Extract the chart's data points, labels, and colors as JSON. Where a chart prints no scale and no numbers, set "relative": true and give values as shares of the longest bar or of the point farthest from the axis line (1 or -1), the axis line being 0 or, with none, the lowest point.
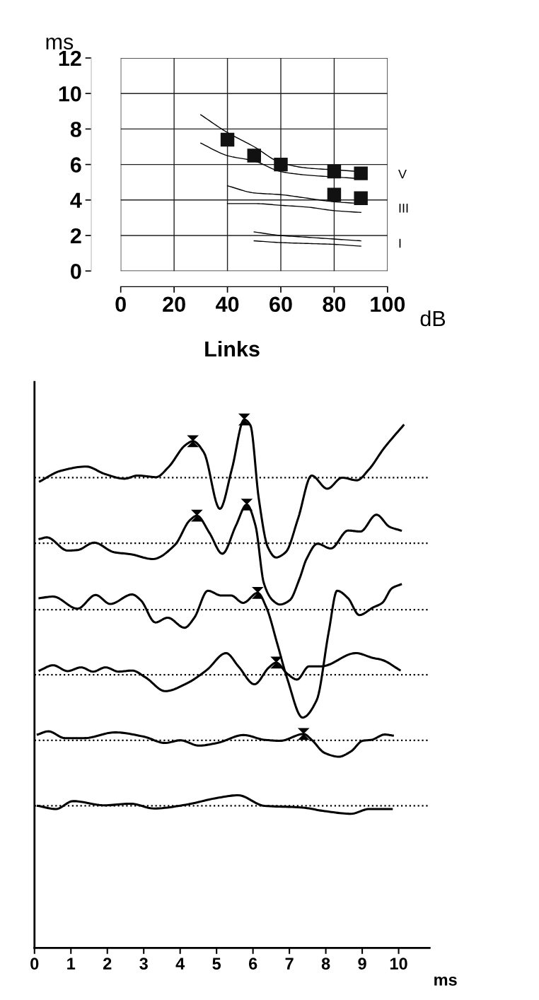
{
  "chart_data": [
    {
      "type": "scatter",
      "xlabel": "dB",
      "ylabel": "ms",
      "xlim": [
        0,
        100
      ],
      "ylim": [
        0,
        12
      ],
      "xticks": [
        0,
        20,
        40,
        60,
        80,
        100
      ],
      "yticks": [
        0,
        2,
        4,
        6,
        8,
        10,
        12
      ],
      "grid": true,
      "series": [
        {
          "marker": "square",
          "color": "#111111",
          "x": [
            40,
            50,
            60,
            80,
            90
          ],
          "values": [
            7.4,
            6.5,
            6.0,
            5.6,
            5.5
          ]
        },
        {
          "marker": "square",
          "color": "#111111",
          "x": [
            80,
            90
          ],
          "values": [
            4.3,
            4.1
          ]
        },
        {
          "type": "line",
          "color": "#000000",
          "x": [
            30,
            40,
            50,
            60,
            70,
            80,
            90
          ],
          "values": [
            8.8,
            7.8,
            7.0,
            6.1,
            5.8,
            5.7,
            5.6
          ]
        },
        {
          "type": "line",
          "color": "#000000",
          "x": [
            30,
            40,
            50,
            60,
            70,
            80,
            90
          ],
          "values": [
            7.2,
            6.5,
            6.2,
            5.6,
            5.4,
            5.3,
            5.2
          ]
        },
        {
          "type": "line",
          "color": "#000000",
          "x": [
            40,
            50,
            60,
            70,
            80,
            90
          ],
          "values": [
            4.8,
            4.4,
            4.3,
            4.1,
            3.9,
            3.8
          ]
        },
        {
          "type": "line",
          "color": "#000000",
          "x": [
            40,
            50,
            60,
            70,
            80,
            90
          ],
          "values": [
            3.8,
            3.8,
            3.7,
            3.6,
            3.4,
            3.3
          ]
        },
        {
          "type": "line",
          "color": "#000000",
          "x": [
            50,
            60,
            70,
            80,
            90
          ],
          "values": [
            2.2,
            2.0,
            1.9,
            1.8,
            1.7
          ]
        },
        {
          "type": "line",
          "color": "#000000",
          "x": [
            50,
            60,
            70,
            80,
            90
          ],
          "values": [
            1.7,
            1.6,
            1.55,
            1.5,
            1.4
          ]
        }
      ],
      "annotations": [
        "V",
        "III",
        "I"
      ]
    },
    {
      "type": "line",
      "relative": true,
      "title": "Links",
      "xlabel": "ms",
      "xlim": [
        0,
        10.85
      ],
      "xticks": [
        0,
        1,
        2,
        3,
        4,
        5,
        6,
        7,
        8,
        9,
        10
      ],
      "grid": false,
      "series": [
        {
          "color": "#000000",
          "x": [
            0.15,
            0.72,
            1.42,
            1.93,
            2.47,
            2.83,
            3.34,
            3.68,
            4.15,
            4.35,
            4.65,
            5.09,
            5.42,
            5.76,
            5.93,
            6.16,
            6.41,
            6.63,
            6.9,
            7.24,
            7.61,
            8.04,
            8.45,
            8.85,
            9.19,
            9.59,
            10.13
          ],
          "values": [
            0.883,
            0.903,
            0.911,
            0.897,
            0.888,
            0.894,
            0.891,
            0.91,
            0.952,
            0.959,
            0.938,
            0.831,
            0.906,
            1.0,
            0.989,
            0.85,
            0.758,
            0.739,
            0.749,
            0.813,
            0.894,
            0.869,
            0.89,
            0.885,
            0.906,
            0.945,
            0.989
          ]
        },
        {
          "color": "#000000",
          "x": [
            0.14,
            0.34,
            0.91,
            1.18,
            1.64,
            2.18,
            2.65,
            3.25,
            3.86,
            4.26,
            4.46,
            4.8,
            5.16,
            5.53,
            5.83,
            6.07,
            6.3,
            6.54,
            6.74,
            7.01,
            7.28,
            7.47,
            7.77,
            8.14,
            8.61,
            8.95,
            9.39,
            9.75,
            10.06
          ],
          "values": [
            0.774,
            0.777,
            0.752,
            0.753,
            0.767,
            0.749,
            0.745,
            0.736,
            0.763,
            0.809,
            0.818,
            0.786,
            0.746,
            0.799,
            0.839,
            0.799,
            0.69,
            0.658,
            0.65,
            0.658,
            0.699,
            0.736,
            0.765,
            0.756,
            0.79,
            0.788,
            0.82,
            0.797,
            0.79
          ]
        },
        {
          "color": "#000000",
          "x": [
            0.14,
            0.51,
            1.18,
            1.68,
            2.08,
            2.68,
            2.92,
            3.32,
            3.66,
            4.12,
            4.39,
            4.76,
            5.13,
            5.4,
            5.73,
            6.13,
            6.37,
            6.67,
            6.94,
            7.36,
            7.75,
            8.08,
            8.31,
            8.61,
            8.92,
            9.29,
            9.55,
            9.82,
            10.06
          ],
          "values": [
            0.662,
            0.665,
            0.642,
            0.668,
            0.651,
            0.669,
            0.658,
            0.616,
            0.625,
            0.606,
            0.625,
            0.676,
            0.667,
            0.667,
            0.653,
            0.672,
            0.644,
            0.575,
            0.51,
            0.436,
            0.469,
            0.598,
            0.676,
            0.662,
            0.63,
            0.644,
            0.653,
            0.681,
            0.688
          ]
        },
        {
          "color": "#000000",
          "x": [
            0.14,
            0.51,
            0.91,
            1.28,
            1.61,
            1.95,
            2.31,
            2.68,
            3.05,
            3.59,
            4.19,
            4.73,
            5.26,
            5.6,
            6.04,
            6.44,
            6.64,
            6.94,
            7.21,
            7.54,
            7.88,
            8.82,
            9.29,
            9.55,
            10.03
          ],
          "values": [
            0.525,
            0.535,
            0.524,
            0.531,
            0.523,
            0.531,
            0.523,
            0.525,
            0.512,
            0.486,
            0.501,
            0.526,
            0.558,
            0.533,
            0.499,
            0.531,
            0.54,
            0.519,
            0.508,
            0.533,
            0.533,
            0.558,
            0.549,
            0.545,
            0.526
          ]
        },
        {
          "color": "#000000",
          "x": [
            0.09,
            0.38,
            0.84,
            1.35,
            2.21,
            3.0,
            3.58,
            4.01,
            4.51,
            5.02,
            5.74,
            6.31,
            6.75,
            7.39,
            7.61,
            7.97,
            8.36,
            8.69,
            9.01,
            9.26,
            9.62,
            9.84
          ],
          "values": [
            0.404,
            0.41,
            0.397,
            0.397,
            0.408,
            0.4,
            0.388,
            0.393,
            0.383,
            0.388,
            0.403,
            0.394,
            0.392,
            0.405,
            0.394,
            0.369,
            0.362,
            0.372,
            0.392,
            0.394,
            0.404,
            0.402
          ]
        },
        {
          "color": "#000000",
          "x": [
            0.09,
            0.59,
            1.06,
            1.92,
            2.64,
            3.29,
            4.15,
            5.02,
            5.59,
            6.31,
            7.32,
            7.97,
            8.69,
            9.19,
            9.81
          ],
          "values": [
            0.269,
            0.263,
            0.278,
            0.27,
            0.273,
            0.264,
            0.271,
            0.284,
            0.289,
            0.269,
            0.266,
            0.259,
            0.254,
            0.263,
            0.263
          ]
        },
        {
          "type": "scatter",
          "marker": "triangle",
          "color": "#000000",
          "x": [
            4.35,
            5.76,
            4.46,
            5.83,
            6.13,
            6.64,
            7.39
          ],
          "values": [
            0.959,
            1.0,
            0.818,
            0.839,
            0.672,
            0.54,
            0.405
          ]
        }
      ],
      "ref_lines": [
        {
          "axis": "y",
          "value": 0.89,
          "line_style": "dotted",
          "color": "#000000"
        },
        {
          "axis": "y",
          "value": 0.766,
          "line_style": "dotted",
          "color": "#000000"
        },
        {
          "axis": "y",
          "value": 0.64,
          "line_style": "dotted",
          "color": "#000000"
        },
        {
          "axis": "y",
          "value": 0.517,
          "line_style": "dotted",
          "color": "#000000"
        },
        {
          "axis": "y",
          "value": 0.393,
          "line_style": "dotted",
          "color": "#000000"
        },
        {
          "axis": "y",
          "value": 0.269,
          "line_style": "dotted",
          "color": "#000000"
        }
      ]
    }
  ]
}
